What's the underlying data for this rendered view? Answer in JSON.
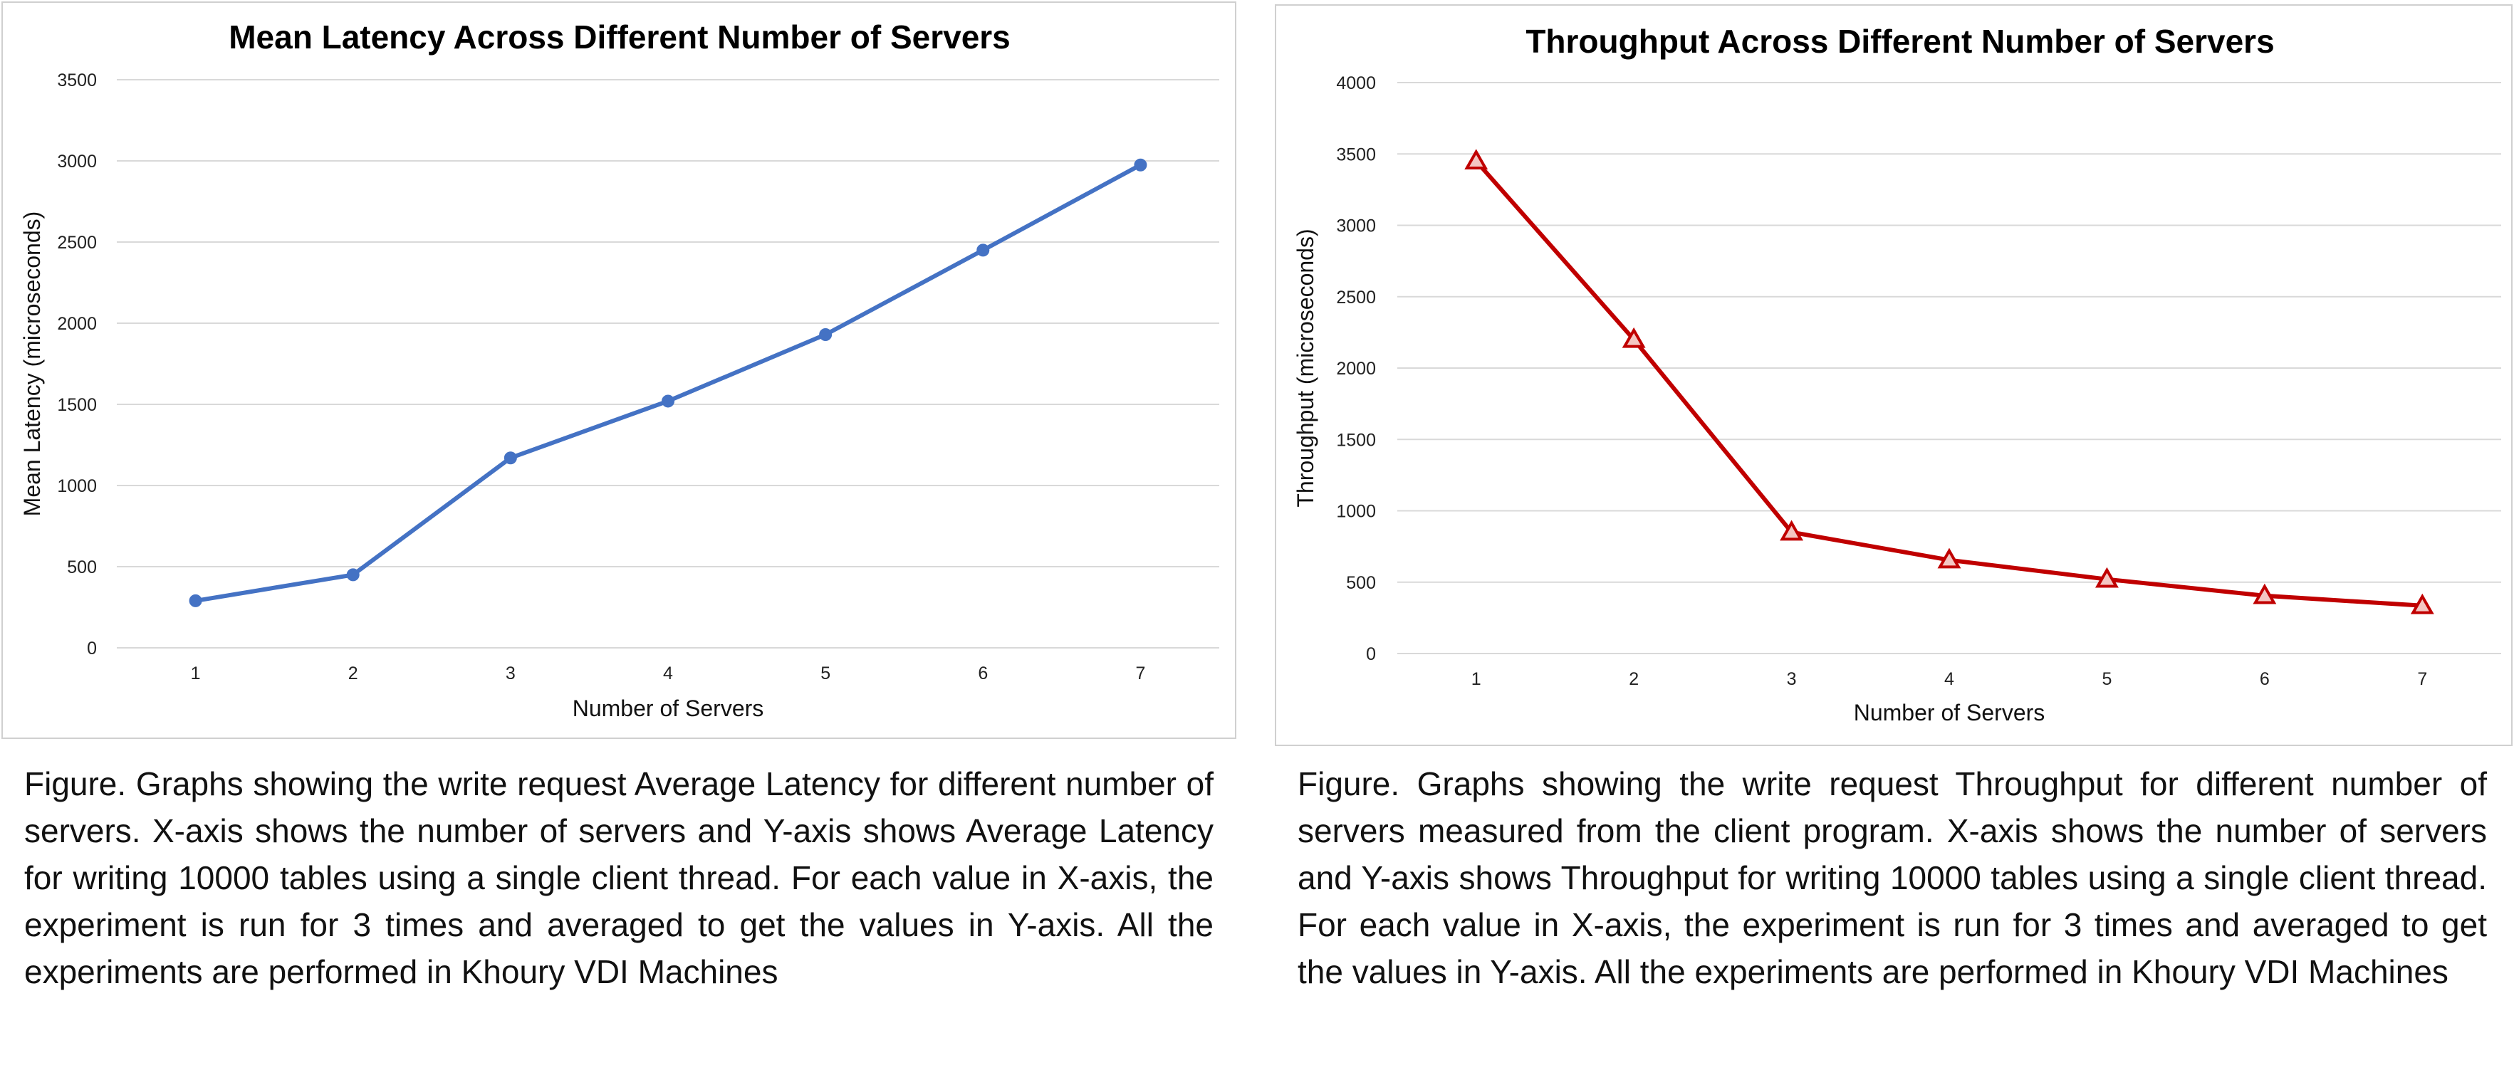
{
  "chart_data": [
    {
      "type": "line",
      "title": "Mean Latency Across Different Number of Servers",
      "xlabel": "Number of Servers",
      "ylabel": "Mean Latency (microseconds)",
      "x": [
        1,
        2,
        3,
        4,
        5,
        6,
        7
      ],
      "xticks": [
        "1",
        "2",
        "3",
        "4",
        "5",
        "6",
        "7"
      ],
      "ylim": [
        0,
        3500
      ],
      "yticks": [
        0,
        500,
        1000,
        1500,
        2000,
        2500,
        3000,
        3500
      ],
      "grid": true,
      "series": [
        {
          "values": [
            290,
            450,
            1170,
            1520,
            1930,
            2450,
            2975
          ],
          "color": "#4472c4",
          "marker": "circle"
        }
      ]
    },
    {
      "type": "line",
      "title": "Throughput  Across Different Number of Servers",
      "xlabel": "Number of Servers",
      "ylabel": "Throughput (microseconds)",
      "x": [
        1,
        2,
        3,
        4,
        5,
        6,
        7
      ],
      "xticks": [
        "1",
        "2",
        "3",
        "4",
        "5",
        "6",
        "7"
      ],
      "ylim": [
        0,
        4000
      ],
      "yticks": [
        0,
        500,
        1000,
        1500,
        2000,
        2500,
        3000,
        3500,
        4000
      ],
      "grid": true,
      "series": [
        {
          "values": [
            3450,
            2200,
            850,
            655,
            520,
            405,
            335
          ],
          "color": "#c00000",
          "marker": "triangle"
        }
      ]
    }
  ],
  "captions": {
    "left": "Figure. Graphs showing the write request Average Latency for different number of servers. X-axis shows the number of servers and Y-axis shows Average Latency for writing 10000 tables using a single client thread. For each value in X-axis, the experiment is run for 3 times and averaged to get the values in Y-axis. All the experiments are performed in Khoury VDI Machines",
    "right": "Figure. Graphs showing the write request Throughput for different number of servers measured from the client program. X-axis shows the number of servers and Y-axis shows Throughput for writing 10000 tables using a single client thread. For each value in X-axis, the experiment is run for 3 times and averaged to get the values in Y-axis. All the experiments are performed in Khoury VDI Machines"
  }
}
